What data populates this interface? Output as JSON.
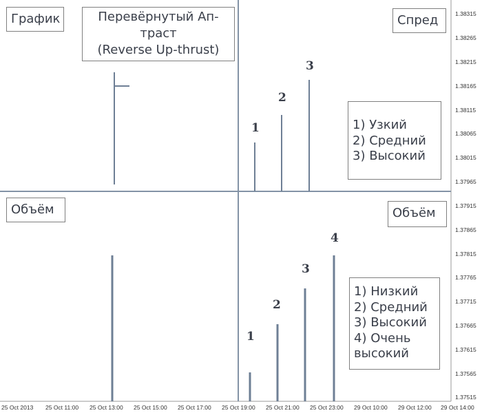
{
  "panels": {
    "chart_label": "График",
    "spread_label": "Спред",
    "volume_left_label": "Объём",
    "volume_right_label": "Объём"
  },
  "title": {
    "line1": "Перевёрнутый Ап-",
    "line2": "траст",
    "line3": "(Reverse Up-thrust)"
  },
  "spread_legend": [
    "1) Узкий",
    "2) Средний",
    "3) Высокий"
  ],
  "volume_legend": [
    "1) Низкий",
    "2) Средний",
    "3) Высокий",
    "4) Очень",
    "высокий"
  ],
  "spread_bar_labels": [
    "1",
    "2",
    "3"
  ],
  "volume_bar_labels": [
    "1",
    "2",
    "3",
    "4"
  ],
  "price_axis": [
    "1.38315",
    "1.38265",
    "1.38215",
    "1.38165",
    "1.38115",
    "1.38065",
    "1.38015",
    "1.37965",
    "1.37915",
    "1.37865",
    "1.37815",
    "1.37765",
    "1.37715",
    "1.37665",
    "1.37615",
    "1.37565",
    "1.37515"
  ],
  "time_axis": [
    "25 Oct 2013",
    "25 Oct 11:00",
    "25 Oct 13:00",
    "25 Oct 15:00",
    "25 Oct 17:00",
    "25 Oct 19:00",
    "25 Oct 21:00",
    "25 Oct 23:00",
    "29 Oct 10:00",
    "29 Oct 12:00",
    "29 Oct 14:00"
  ],
  "colors": {
    "line": "#6e7f95",
    "divider": "#8393a6",
    "text": "#3a3f4a",
    "border": "#7f7f7f"
  }
}
